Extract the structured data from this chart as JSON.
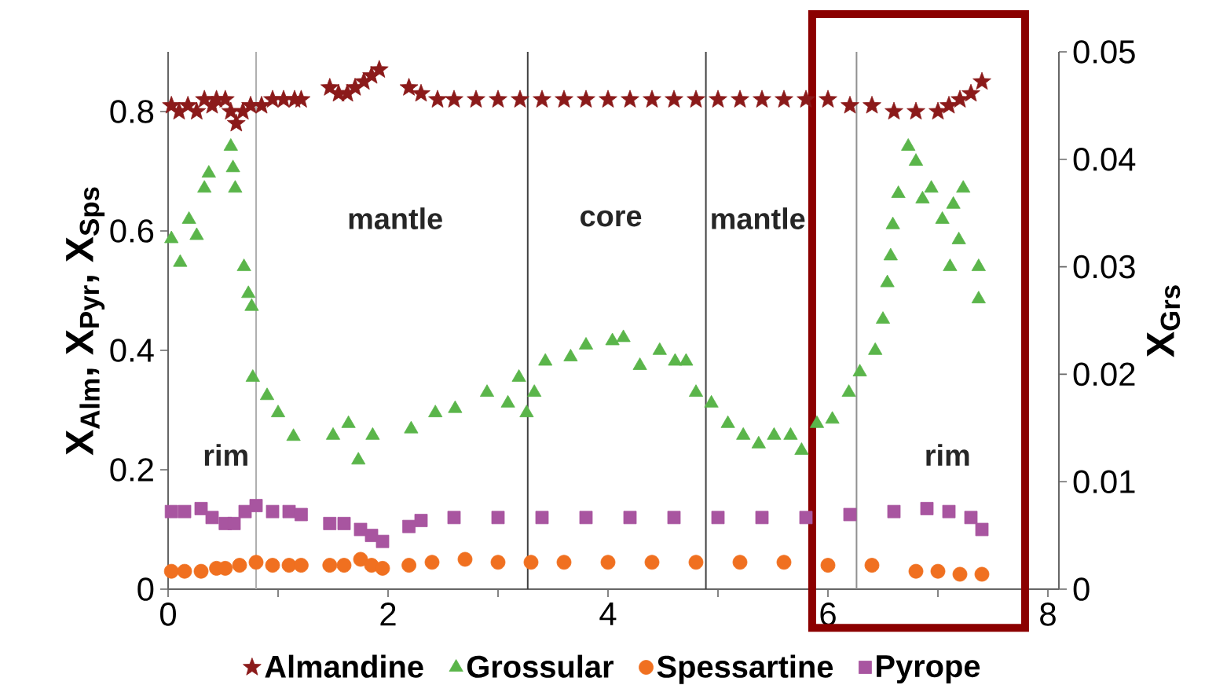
{
  "chart_data": {
    "type": "scatter",
    "ylabel": "X$_{Alm}$, X$_{Pyr}$, X$_{Sps}$",
    "y2label": "X$_{Grs}$",
    "xlim": [
      0,
      8.1
    ],
    "xticks": [
      0,
      {
        "value": 1,
        "label": null
      },
      2,
      {
        "value": 3,
        "label": null
      },
      4,
      {
        "value": 5,
        "label": null
      },
      6,
      {
        "value": 7,
        "label": null
      },
      8
    ],
    "ylim": [
      0,
      0.9
    ],
    "yticks": [
      0,
      0.2,
      0.4,
      0.6,
      0.8
    ],
    "y2lim": [
      0,
      0.05
    ],
    "y2ticks": [
      0,
      0.01,
      0.02,
      0.03,
      0.04,
      0.05
    ],
    "legend": "bottom",
    "grid": false,
    "series": [
      {
        "name": "Almandine",
        "color": "#8b1a1a",
        "marker": "star",
        "x": [
          0.03,
          0.1,
          0.18,
          0.26,
          0.33,
          0.4,
          0.44,
          0.52,
          0.57,
          0.62,
          0.68,
          0.75,
          0.85,
          0.95,
          1.05,
          1.15,
          1.21,
          1.47,
          1.55,
          1.63,
          1.7,
          1.78,
          1.85,
          1.92,
          2.19,
          2.3,
          2.45,
          2.6,
          2.8,
          3.0,
          3.2,
          3.4,
          3.6,
          3.8,
          4.0,
          4.2,
          4.4,
          4.6,
          4.8,
          5.0,
          5.2,
          5.4,
          5.6,
          5.8,
          6.0,
          6.2,
          6.4,
          6.6,
          6.8,
          7.0,
          7.1,
          7.2,
          7.3,
          7.4
        ],
        "values": [
          0.81,
          0.8,
          0.81,
          0.8,
          0.82,
          0.81,
          0.82,
          0.82,
          0.8,
          0.78,
          0.8,
          0.81,
          0.81,
          0.82,
          0.82,
          0.82,
          0.82,
          0.84,
          0.83,
          0.83,
          0.84,
          0.85,
          0.86,
          0.87,
          0.84,
          0.83,
          0.82,
          0.82,
          0.82,
          0.82,
          0.82,
          0.82,
          0.82,
          0.82,
          0.82,
          0.82,
          0.82,
          0.82,
          0.82,
          0.82,
          0.82,
          0.82,
          0.82,
          0.82,
          0.82,
          0.81,
          0.81,
          0.8,
          0.8,
          0.8,
          0.81,
          0.82,
          0.83,
          0.85
        ]
      },
      {
        "name": "Grossular",
        "color": "#5ab54a",
        "marker": "triangle",
        "axis": "y2",
        "x": [
          0.03,
          0.11,
          0.19,
          0.26,
          0.33,
          0.37,
          0.57,
          0.59,
          0.61,
          0.69,
          0.73,
          0.76,
          0.77,
          0.9,
          1.0,
          1.14,
          1.5,
          1.64,
          1.73,
          1.86,
          2.21,
          2.43,
          2.61,
          2.9,
          3.09,
          3.19,
          3.26,
          3.33,
          3.43,
          3.66,
          3.8,
          4.04,
          4.14,
          4.29,
          4.47,
          4.61,
          4.71,
          4.8,
          4.94,
          5.09,
          5.23,
          5.37,
          5.51,
          5.66,
          5.76,
          5.9,
          6.04,
          6.19,
          6.29,
          6.43,
          6.5,
          6.54,
          6.57,
          6.59,
          6.64,
          6.73,
          6.8,
          6.86,
          6.94,
          7.04,
          7.11,
          7.14,
          7.19,
          7.23,
          7.37,
          7.37
        ],
        "values": [
          0.0326,
          0.0304,
          0.0344,
          0.0329,
          0.0373,
          0.0387,
          0.0412,
          0.0392,
          0.0373,
          0.03,
          0.0275,
          0.0263,
          0.0197,
          0.018,
          0.0164,
          0.0142,
          0.0143,
          0.0154,
          0.012,
          0.0143,
          0.0149,
          0.0164,
          0.0168,
          0.0183,
          0.0173,
          0.0197,
          0.0164,
          0.0183,
          0.0212,
          0.0216,
          0.0227,
          0.0231,
          0.0234,
          0.0208,
          0.0222,
          0.0212,
          0.0212,
          0.0183,
          0.0173,
          0.0154,
          0.0143,
          0.0135,
          0.0143,
          0.0143,
          0.0129,
          0.0154,
          0.0158,
          0.0183,
          0.0202,
          0.0222,
          0.0251,
          0.0285,
          0.031,
          0.0339,
          0.0368,
          0.0412,
          0.0398,
          0.0363,
          0.0373,
          0.0344,
          0.03,
          0.0358,
          0.0325,
          0.0373,
          0.03,
          0.027
        ]
      },
      {
        "name": "Spessartine",
        "color": "#f07020",
        "marker": "circle",
        "x": [
          0.03,
          0.15,
          0.3,
          0.44,
          0.52,
          0.65,
          0.8,
          0.95,
          1.1,
          1.21,
          1.47,
          1.6,
          1.75,
          1.85,
          1.95,
          2.19,
          2.4,
          2.7,
          3.0,
          3.3,
          3.6,
          4.0,
          4.4,
          4.8,
          5.2,
          5.6,
          6.0,
          6.4,
          6.8,
          7.0,
          7.2,
          7.4
        ],
        "values": [
          0.03,
          0.03,
          0.03,
          0.035,
          0.035,
          0.04,
          0.045,
          0.04,
          0.04,
          0.04,
          0.04,
          0.04,
          0.05,
          0.04,
          0.035,
          0.04,
          0.045,
          0.05,
          0.045,
          0.045,
          0.045,
          0.045,
          0.045,
          0.045,
          0.045,
          0.045,
          0.04,
          0.04,
          0.03,
          0.03,
          0.025,
          0.025
        ]
      },
      {
        "name": "Pyrope",
        "color": "#a855a0",
        "marker": "square",
        "x": [
          0.03,
          0.15,
          0.3,
          0.4,
          0.52,
          0.6,
          0.7,
          0.8,
          0.95,
          1.1,
          1.21,
          1.47,
          1.6,
          1.75,
          1.85,
          1.95,
          2.19,
          2.3,
          2.6,
          3.0,
          3.4,
          3.8,
          4.2,
          4.6,
          5.0,
          5.4,
          5.8,
          6.2,
          6.6,
          6.9,
          7.1,
          7.3,
          7.4
        ],
        "values": [
          0.13,
          0.13,
          0.135,
          0.12,
          0.11,
          0.11,
          0.13,
          0.14,
          0.13,
          0.13,
          0.125,
          0.11,
          0.11,
          0.1,
          0.09,
          0.08,
          0.105,
          0.115,
          0.12,
          0.12,
          0.12,
          0.12,
          0.12,
          0.12,
          0.12,
          0.12,
          0.12,
          0.125,
          0.13,
          0.135,
          0.13,
          0.12,
          0.1
        ]
      }
    ],
    "ref_lines": [
      {
        "axis": "x",
        "value": 0.8,
        "color": "#b0b0b0"
      },
      {
        "axis": "x",
        "value": 3.27,
        "color": "#404040"
      },
      {
        "axis": "x",
        "value": 4.89,
        "color": "#404040"
      },
      {
        "axis": "x",
        "value": 6.26,
        "color": "#909090"
      }
    ],
    "annotations": [
      "rim",
      "mantle",
      "core",
      "mantle",
      "rim"
    ]
  }
}
